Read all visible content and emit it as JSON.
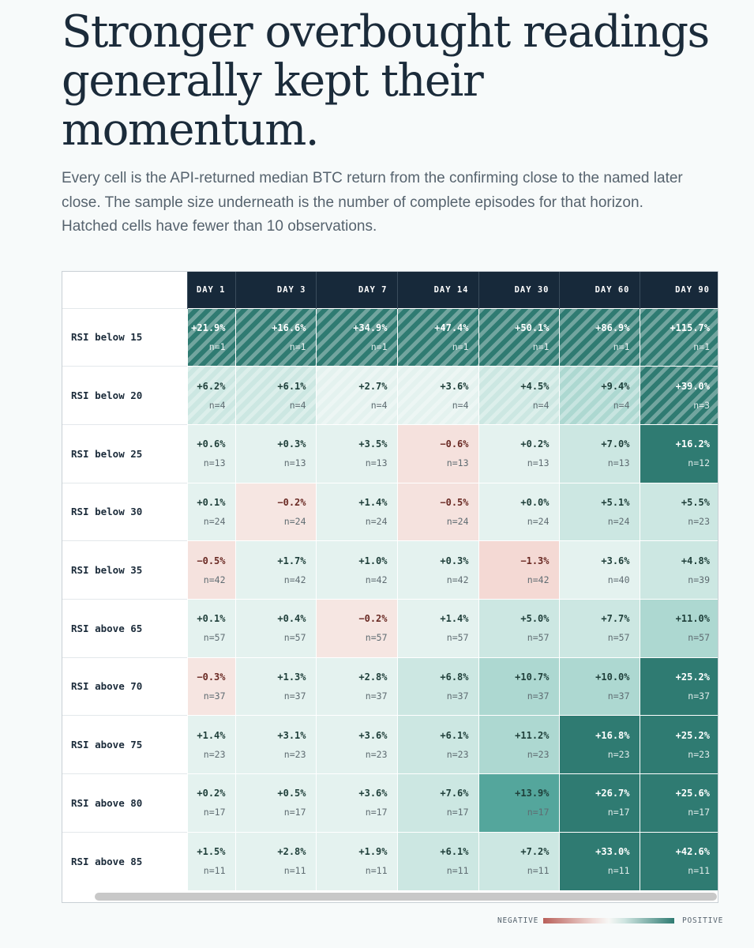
{
  "title": "Stronger overbought readings generally kept their momentum.",
  "subtitle": "Every cell is the API-returned median BTC return from the confirming close to the named later close. The sample size underneath is the number of complete episodes for that horizon. Hatched cells have fewer than 10 observations.",
  "legend": {
    "negative": "NEGATIVE",
    "positive": "POSITIVE"
  },
  "colors": {
    "header": "#17293a",
    "negative": "#b9605a",
    "positive": "#2f7b72"
  },
  "chart_data": {
    "type": "heatmap",
    "columns": [
      "DAY 1",
      "DAY 3",
      "DAY 7",
      "DAY 14",
      "DAY 30",
      "DAY 60",
      "DAY 90"
    ],
    "hatch_threshold_n": 10,
    "rows": [
      {
        "label": "RSI below 15",
        "values": [
          "+21.9%",
          "+16.6%",
          "+34.9%",
          "+47.4%",
          "+50.1%",
          "+86.9%",
          "+115.7%"
        ],
        "n": [
          "n=1",
          "n=1",
          "n=1",
          "n=1",
          "n=1",
          "n=1",
          "n=1"
        ]
      },
      {
        "label": "RSI below 20",
        "values": [
          "+6.2%",
          "+6.1%",
          "+2.7%",
          "+3.6%",
          "+4.5%",
          "+9.4%",
          "+39.0%"
        ],
        "n": [
          "n=4",
          "n=4",
          "n=4",
          "n=4",
          "n=4",
          "n=4",
          "n=3"
        ]
      },
      {
        "label": "RSI below 25",
        "values": [
          "+0.6%",
          "+0.3%",
          "+3.5%",
          "−0.6%",
          "+0.2%",
          "+7.0%",
          "+16.2%"
        ],
        "n": [
          "n=13",
          "n=13",
          "n=13",
          "n=13",
          "n=13",
          "n=13",
          "n=12"
        ]
      },
      {
        "label": "RSI below 30",
        "values": [
          "+0.1%",
          "−0.2%",
          "+1.4%",
          "−0.5%",
          "+0.0%",
          "+5.1%",
          "+5.5%"
        ],
        "n": [
          "n=24",
          "n=24",
          "n=24",
          "n=24",
          "n=24",
          "n=24",
          "n=23"
        ]
      },
      {
        "label": "RSI below 35",
        "values": [
          "−0.5%",
          "+1.7%",
          "+1.0%",
          "+0.3%",
          "−1.3%",
          "+3.6%",
          "+4.8%"
        ],
        "n": [
          "n=42",
          "n=42",
          "n=42",
          "n=42",
          "n=42",
          "n=40",
          "n=39"
        ]
      },
      {
        "label": "RSI above 65",
        "values": [
          "+0.1%",
          "+0.4%",
          "−0.2%",
          "+1.4%",
          "+5.0%",
          "+7.7%",
          "+11.0%"
        ],
        "n": [
          "n=57",
          "n=57",
          "n=57",
          "n=57",
          "n=57",
          "n=57",
          "n=57"
        ]
      },
      {
        "label": "RSI above 70",
        "values": [
          "−0.3%",
          "+1.3%",
          "+2.8%",
          "+6.8%",
          "+10.7%",
          "+10.0%",
          "+25.2%"
        ],
        "n": [
          "n=37",
          "n=37",
          "n=37",
          "n=37",
          "n=37",
          "n=37",
          "n=37"
        ]
      },
      {
        "label": "RSI above 75",
        "values": [
          "+1.4%",
          "+3.1%",
          "+3.6%",
          "+6.1%",
          "+11.2%",
          "+16.8%",
          "+25.2%"
        ],
        "n": [
          "n=23",
          "n=23",
          "n=23",
          "n=23",
          "n=23",
          "n=23",
          "n=23"
        ]
      },
      {
        "label": "RSI above 80",
        "values": [
          "+0.2%",
          "+0.5%",
          "+3.6%",
          "+7.6%",
          "+13.9%",
          "+26.7%",
          "+25.6%"
        ],
        "n": [
          "n=17",
          "n=17",
          "n=17",
          "n=17",
          "n=17",
          "n=17",
          "n=17"
        ]
      },
      {
        "label": "RSI above 85",
        "values": [
          "+1.5%",
          "+2.8%",
          "+1.9%",
          "+6.1%",
          "+7.2%",
          "+33.0%",
          "+42.6%"
        ],
        "n": [
          "n=11",
          "n=11",
          "n=11",
          "n=11",
          "n=11",
          "n=11",
          "n=11"
        ]
      }
    ]
  }
}
